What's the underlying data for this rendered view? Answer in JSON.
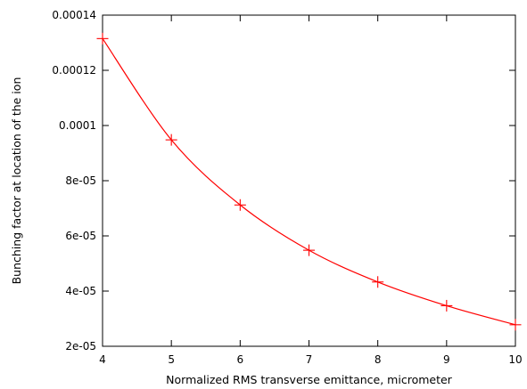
{
  "chart_data": {
    "type": "line",
    "title": "",
    "xlabel": "Normalized RMS transverse emittance, micrometer",
    "ylabel": "Bunching factor at location of the ion",
    "xlim": [
      4,
      10
    ],
    "ylim": [
      2e-05,
      0.00014
    ],
    "x_ticks": [
      4,
      5,
      6,
      7,
      8,
      9,
      10
    ],
    "x_tick_labels": [
      "4",
      "5",
      "6",
      "7",
      "8",
      "9",
      "10"
    ],
    "y_ticks": [
      2e-05,
      4e-05,
      6e-05,
      8e-05,
      0.0001,
      0.00012,
      0.00014
    ],
    "y_tick_labels": [
      "2e-05",
      "4e-05",
      "6e-05",
      "8e-05",
      "0.0001",
      "0.00012",
      "0.00014"
    ],
    "grid": false,
    "series": [
      {
        "color": "#ff0000",
        "marker": "plus",
        "x": [
          4,
          5,
          6,
          7,
          8,
          9,
          10
        ],
        "y": [
          0.0001315,
          9.48e-05,
          7.12e-05,
          5.48e-05,
          4.33e-05,
          3.47e-05,
          2.78e-05
        ]
      }
    ]
  }
}
